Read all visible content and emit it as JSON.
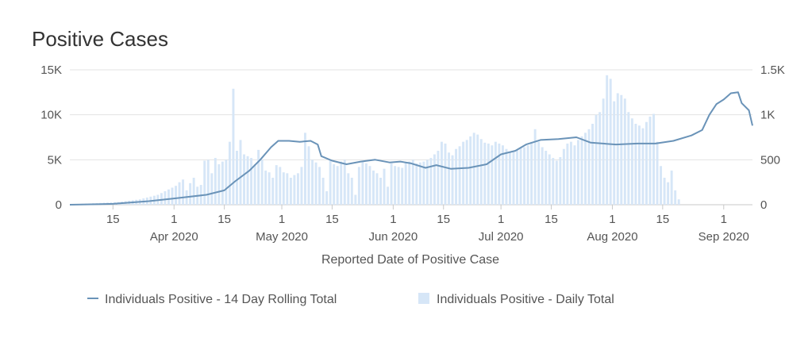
{
  "chart_data": {
    "type": "bar",
    "title": "Positive Cases",
    "xlabel": "Reported Date of Positive Case",
    "ylabel_left": "",
    "ylabel_right": "",
    "start_date": "2020-03-03",
    "end_date": "2020-09-05",
    "grid": true,
    "legend_position": "bottom",
    "left_axis": {
      "range": [
        0,
        15000
      ],
      "ticks": [
        0,
        5000,
        10000,
        15000
      ],
      "tick_labels": [
        "0",
        "5K",
        "10K",
        "15K"
      ]
    },
    "right_axis": {
      "range": [
        0,
        1500
      ],
      "ticks": [
        0,
        500,
        1000,
        1500
      ],
      "tick_labels": [
        "0",
        "500",
        "1K",
        "1.5K"
      ]
    },
    "x_ticks": [
      {
        "date": "2020-03-15",
        "label": "15",
        "sublabel": ""
      },
      {
        "date": "2020-04-01",
        "label": "1",
        "sublabel": "Apr 2020"
      },
      {
        "date": "2020-04-15",
        "label": "15",
        "sublabel": ""
      },
      {
        "date": "2020-05-01",
        "label": "1",
        "sublabel": "May 2020"
      },
      {
        "date": "2020-05-15",
        "label": "15",
        "sublabel": ""
      },
      {
        "date": "2020-06-01",
        "label": "1",
        "sublabel": "Jun 2020"
      },
      {
        "date": "2020-06-15",
        "label": "15",
        "sublabel": ""
      },
      {
        "date": "2020-07-01",
        "label": "1",
        "sublabel": "Jul 2020"
      },
      {
        "date": "2020-07-15",
        "label": "15",
        "sublabel": ""
      },
      {
        "date": "2020-08-01",
        "label": "1",
        "sublabel": "Aug 2020"
      },
      {
        "date": "2020-08-15",
        "label": "15",
        "sublabel": ""
      },
      {
        "date": "2020-09-01",
        "label": "1",
        "sublabel": "Sep 2020"
      }
    ],
    "series": [
      {
        "name": "Individuals Positive - 14 Day Rolling Total",
        "type": "line",
        "axis": "left",
        "color": "#6a93b8",
        "points": [
          [
            "2020-03-03",
            0
          ],
          [
            "2020-03-15",
            100
          ],
          [
            "2020-03-25",
            400
          ],
          [
            "2020-04-01",
            700
          ],
          [
            "2020-04-10",
            1100
          ],
          [
            "2020-04-15",
            1600
          ],
          [
            "2020-04-18",
            2600
          ],
          [
            "2020-04-22",
            3800
          ],
          [
            "2020-04-25",
            5000
          ],
          [
            "2020-04-28",
            6400
          ],
          [
            "2020-04-30",
            7100
          ],
          [
            "2020-05-03",
            7100
          ],
          [
            "2020-05-06",
            7000
          ],
          [
            "2020-05-09",
            7100
          ],
          [
            "2020-05-11",
            6700
          ],
          [
            "2020-05-12",
            5400
          ],
          [
            "2020-05-15",
            4900
          ],
          [
            "2020-05-19",
            4500
          ],
          [
            "2020-05-23",
            4800
          ],
          [
            "2020-05-27",
            5000
          ],
          [
            "2020-05-31",
            4700
          ],
          [
            "2020-06-03",
            4800
          ],
          [
            "2020-06-06",
            4600
          ],
          [
            "2020-06-10",
            4100
          ],
          [
            "2020-06-13",
            4400
          ],
          [
            "2020-06-17",
            4000
          ],
          [
            "2020-06-22",
            4100
          ],
          [
            "2020-06-27",
            4500
          ],
          [
            "2020-07-01",
            5600
          ],
          [
            "2020-07-05",
            6000
          ],
          [
            "2020-07-08",
            6700
          ],
          [
            "2020-07-12",
            7200
          ],
          [
            "2020-07-17",
            7300
          ],
          [
            "2020-07-22",
            7500
          ],
          [
            "2020-07-26",
            6900
          ],
          [
            "2020-08-02",
            6700
          ],
          [
            "2020-08-08",
            6800
          ],
          [
            "2020-08-13",
            6800
          ],
          [
            "2020-08-18",
            7100
          ],
          [
            "2020-08-23",
            7700
          ],
          [
            "2020-08-26",
            8300
          ],
          [
            "2020-08-28",
            10000
          ],
          [
            "2020-08-30",
            11200
          ],
          [
            "2020-09-01",
            11700
          ],
          [
            "2020-09-03",
            12400
          ],
          [
            "2020-09-05",
            12500
          ],
          [
            "2020-09-06",
            11300
          ],
          [
            "2020-09-08",
            10500
          ],
          [
            "2020-09-09",
            8800
          ]
        ]
      },
      {
        "name": "Individuals Positive - Daily Total",
        "type": "bar",
        "axis": "right",
        "color": "#d6e6f7",
        "values": [
          4,
          6,
          8,
          10,
          12,
          14,
          16,
          18,
          20,
          22,
          24,
          26,
          28,
          30,
          35,
          40,
          45,
          50,
          55,
          60,
          70,
          80,
          90,
          100,
          110,
          130,
          150,
          170,
          190,
          210,
          250,
          280,
          160,
          240,
          300,
          200,
          220,
          490,
          500,
          350,
          520,
          450,
          480,
          500,
          700,
          1290,
          600,
          720,
          560,
          540,
          520,
          450,
          610,
          500,
          380,
          360,
          300,
          440,
          420,
          360,
          350,
          300,
          330,
          350,
          420,
          800,
          650,
          500,
          470,
          420,
          300,
          150,
          500,
          450,
          430,
          480,
          500,
          350,
          300,
          110,
          420,
          480,
          460,
          430,
          380,
          350,
          300,
          400,
          200,
          460,
          430,
          420,
          410,
          470,
          480,
          500,
          460,
          470,
          480,
          500,
          520,
          560,
          600,
          700,
          680,
          580,
          550,
          620,
          650,
          700,
          720,
          760,
          800,
          780,
          730,
          690,
          680,
          660,
          700,
          680,
          660,
          620,
          580,
          600,
          610,
          640,
          640,
          660,
          700,
          840,
          700,
          640,
          600,
          560,
          520,
          490,
          530,
          620,
          680,
          700,
          660,
          720,
          760,
          800,
          840,
          900,
          1000,
          1030,
          1180,
          1440,
          1400,
          1150,
          1240,
          1220,
          1180,
          1030,
          960,
          900,
          880,
          850,
          920,
          980,
          1010,
          700,
          430,
          300,
          250,
          380,
          160,
          60,
          0,
          0,
          0,
          0,
          0,
          0,
          0,
          0
        ]
      }
    ]
  }
}
